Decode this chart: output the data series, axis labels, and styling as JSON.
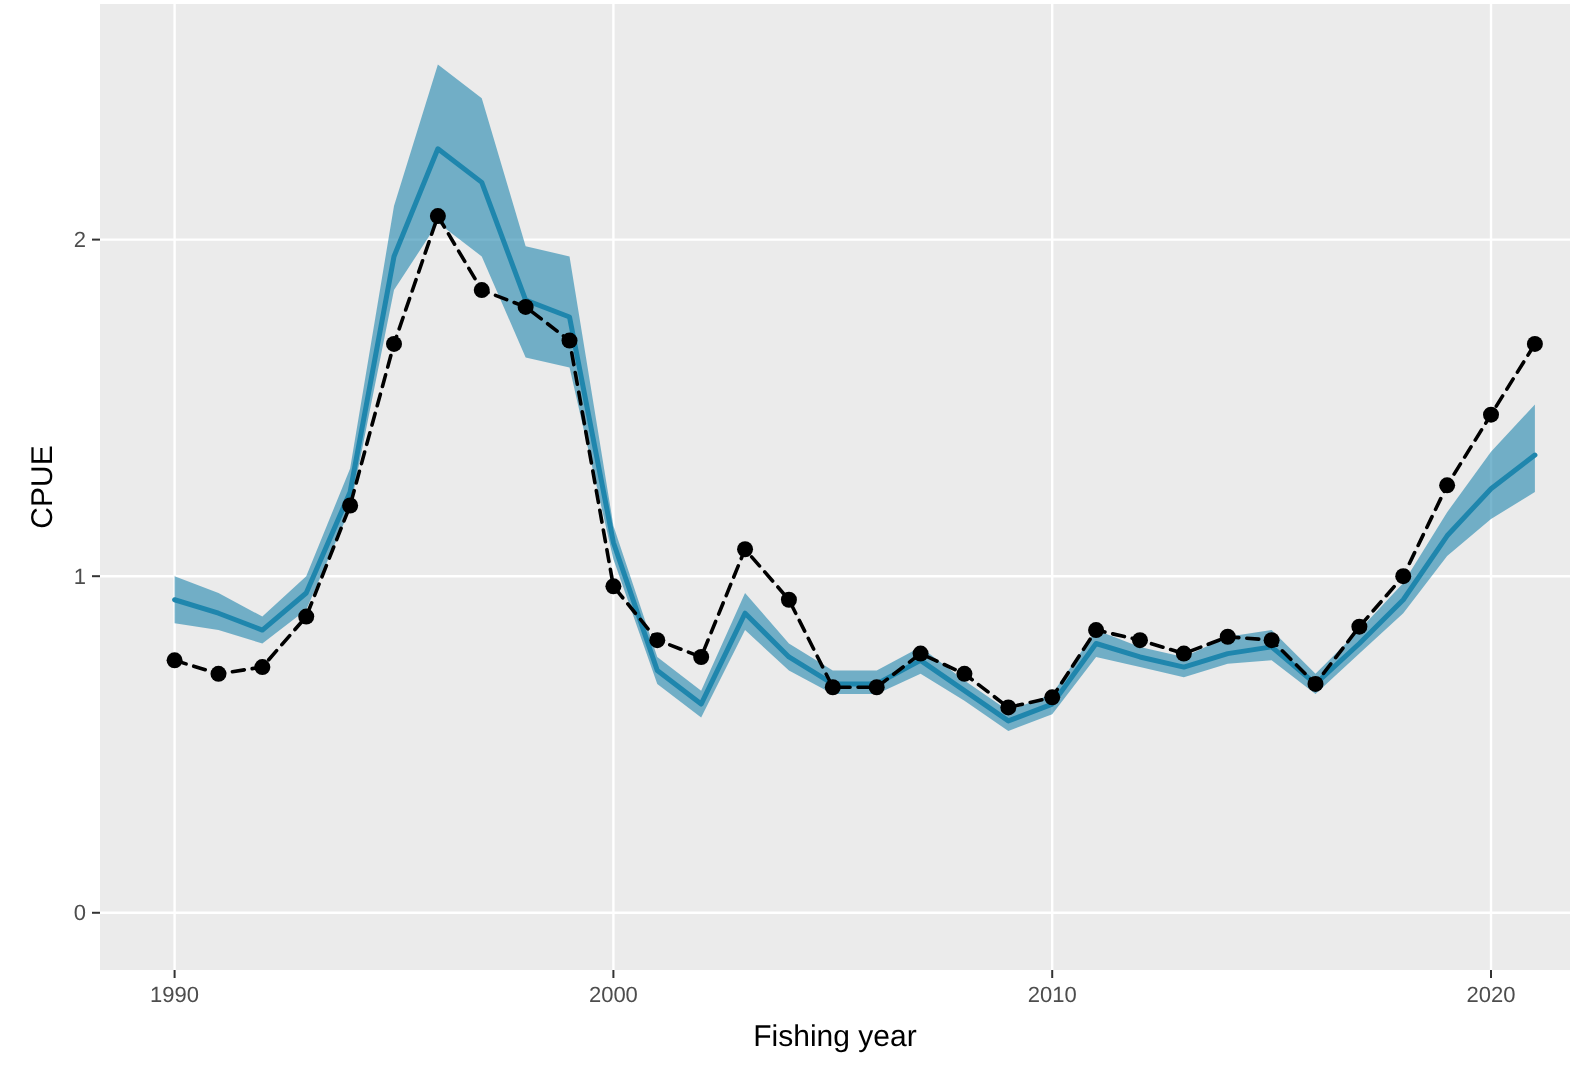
{
  "chart_data": {
    "type": "line",
    "xlabel": "Fishing year",
    "ylabel": "CPUE",
    "x": [
      1990,
      1991,
      1992,
      1993,
      1994,
      1995,
      1996,
      1997,
      1998,
      1999,
      2000,
      2001,
      2002,
      2003,
      2004,
      2005,
      2006,
      2007,
      2008,
      2009,
      2010,
      2011,
      2012,
      2013,
      2014,
      2015,
      2016,
      2017,
      2018,
      2019,
      2020,
      2021
    ],
    "series": [
      {
        "color": "#1f86ad",
        "marker": "none",
        "line_style": "solid",
        "values": [
          0.93,
          0.89,
          0.84,
          0.95,
          1.25,
          1.95,
          2.27,
          2.17,
          1.82,
          1.77,
          1.1,
          0.72,
          0.62,
          0.89,
          0.76,
          0.68,
          0.68,
          0.75,
          0.66,
          0.57,
          0.62,
          0.8,
          0.76,
          0.73,
          0.77,
          0.79,
          0.68,
          0.8,
          0.93,
          1.12,
          1.26,
          1.36
        ],
        "lower": [
          0.86,
          0.84,
          0.8,
          0.9,
          1.2,
          1.85,
          2.05,
          1.95,
          1.65,
          1.62,
          1.05,
          0.68,
          0.58,
          0.84,
          0.72,
          0.65,
          0.65,
          0.71,
          0.63,
          0.54,
          0.59,
          0.76,
          0.73,
          0.7,
          0.74,
          0.75,
          0.65,
          0.77,
          0.89,
          1.06,
          1.17,
          1.25
        ],
        "upper": [
          1.0,
          0.95,
          0.88,
          1.0,
          1.32,
          2.1,
          2.52,
          2.42,
          1.98,
          1.95,
          1.15,
          0.76,
          0.66,
          0.95,
          0.8,
          0.72,
          0.72,
          0.79,
          0.69,
          0.6,
          0.65,
          0.84,
          0.79,
          0.76,
          0.82,
          0.84,
          0.71,
          0.84,
          0.98,
          1.19,
          1.37,
          1.51
        ]
      },
      {
        "color": "#000000",
        "marker": "circle",
        "line_style": "dashed",
        "values": [
          0.75,
          0.71,
          0.73,
          0.88,
          1.21,
          1.69,
          2.07,
          1.85,
          1.8,
          1.7,
          0.97,
          0.81,
          0.76,
          1.08,
          0.93,
          0.67,
          0.67,
          0.77,
          0.71,
          0.61,
          0.64,
          0.84,
          0.81,
          0.77,
          0.82,
          0.81,
          0.68,
          0.85,
          1.0,
          1.27,
          1.48,
          1.69
        ]
      }
    ],
    "xlim": [
      1988.3,
      2021.8
    ],
    "ylim": [
      -0.17,
      2.7
    ],
    "xticks": [
      1990,
      2000,
      2010,
      2020
    ],
    "yticks": [
      0,
      1,
      2
    ],
    "grid": true
  }
}
